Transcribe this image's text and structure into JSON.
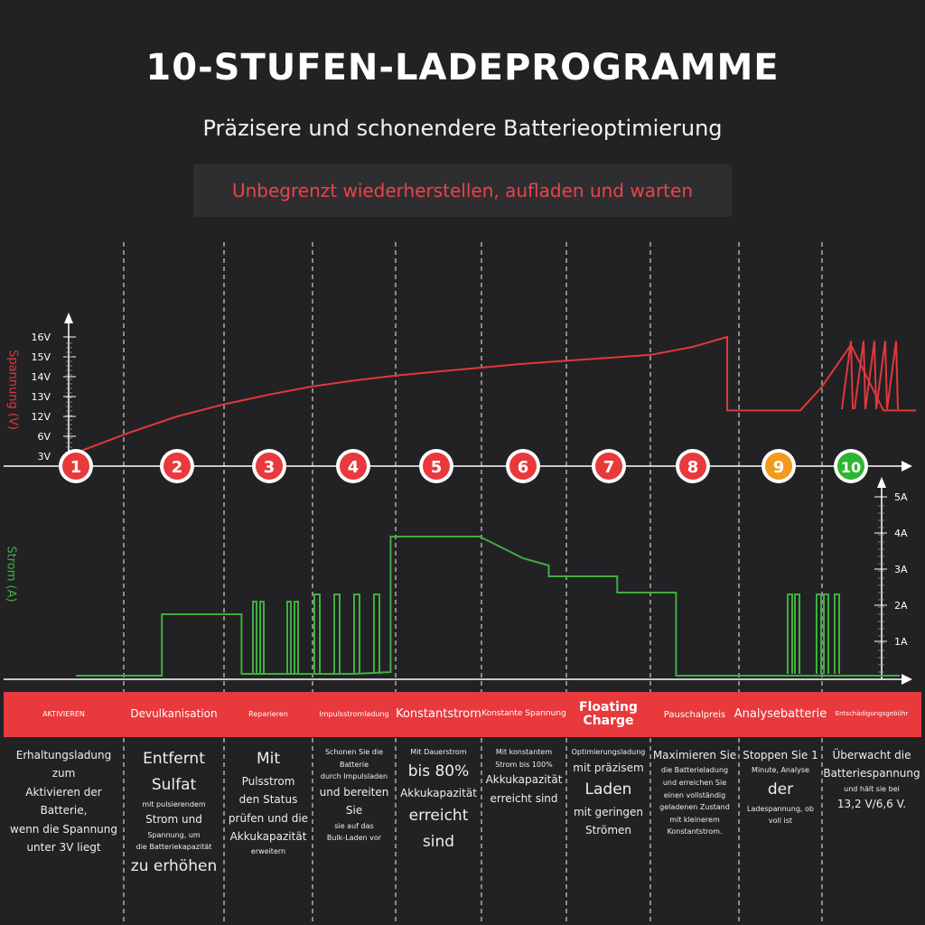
{
  "header": {
    "title": "10-STUFEN-LADEPROGRAMME",
    "subtitle": "Präzisere und schonendere Batterieoptimierung",
    "tagline": "Unbegrenzt wiederherstellen, aufladen und warten"
  },
  "colors": {
    "background": "#222224",
    "voltage_line": "#e0393c",
    "current_line": "#3fae3f",
    "band": "#e8393c",
    "stage_red": "#e8393c",
    "stage_9": "#f29a1d",
    "stage_10": "#2fb52f"
  },
  "chart_data": [
    {
      "type": "line",
      "ylabel": "Spannung (V)",
      "yticks": [
        "3V",
        "6V",
        "12V",
        "13V",
        "14V",
        "15V",
        "16V"
      ],
      "x_stages": [
        "1",
        "2",
        "3",
        "4",
        "5",
        "6",
        "7",
        "8",
        "9",
        "10"
      ],
      "series": [
        {
          "x": [
            1.0,
            1.5,
            2.0,
            2.5,
            3.0,
            3.5,
            4.0,
            4.5,
            5.0,
            5.5,
            6.0,
            6.5,
            7.0,
            7.5,
            8.0,
            8.4,
            8.4,
            9.0,
            9.3,
            9.6,
            10.0,
            10.4,
            10.8
          ],
          "y": [
            3.5,
            6.8,
            12.0,
            12.6,
            13.1,
            13.5,
            13.8,
            14.05,
            14.25,
            14.45,
            14.65,
            14.8,
            14.95,
            15.1,
            15.5,
            16.0,
            12.3,
            12.3,
            12.3,
            13.5,
            15.6,
            12.3,
            12.3
          ]
        }
      ],
      "note": "stage 10 shows repeated sawtooth pulses"
    },
    {
      "type": "line",
      "ylabel": "Strom (A)",
      "yticks": [
        "1A",
        "2A",
        "3A",
        "4A",
        "5A"
      ],
      "ylim": [
        0,
        5
      ],
      "x_stages": [
        "1",
        "2",
        "3",
        "4",
        "5",
        "6",
        "7",
        "8",
        "9",
        "10"
      ],
      "series": [
        {
          "x": [
            1.0,
            1.85,
            1.85,
            2.7,
            2.7,
            3.0,
            3.5,
            4.0,
            4.45,
            4.45,
            5.5,
            6.0,
            6.3,
            6.3,
            7.1,
            7.1,
            7.8,
            7.8,
            8.5,
            9.6,
            10.0,
            10.6
          ],
          "y": [
            0.05,
            0.05,
            1.75,
            1.75,
            0.1,
            0.1,
            0.1,
            0.1,
            0.15,
            3.9,
            3.9,
            3.3,
            3.1,
            2.8,
            2.8,
            2.35,
            2.35,
            0.05,
            0.05,
            0.05,
            0.05,
            0.05
          ]
        }
      ],
      "note": "stages 3, 4 and 9 show rectangular current pulses up to about 2.3A"
    }
  ],
  "stages": [
    {
      "num": "1",
      "label": "AKTIVIEREN"
    },
    {
      "num": "2",
      "label": "Devulkanisation"
    },
    {
      "num": "3",
      "label": "Reparieren"
    },
    {
      "num": "4",
      "label": "Impulsstromladung"
    },
    {
      "num": "5",
      "label": "Konstantstrom"
    },
    {
      "num": "6",
      "label": "Konstante Spannung"
    },
    {
      "num": "7",
      "label": "Floating Charge"
    },
    {
      "num": "8",
      "label": "Pauschalpreis"
    },
    {
      "num": "9",
      "label": "Analysebatterie"
    },
    {
      "num": "10",
      "label": "Entschädigungsgebühr"
    }
  ],
  "descriptions": [
    [
      "Erhaltungsladung zum",
      "Aktivieren der Batterie,",
      "wenn die Spannung",
      "unter 3V liegt"
    ],
    [
      "Entfernt Sulfat",
      "mit pulsierendem",
      "Strom und",
      "Spannung, um",
      "die Batteriekapazität",
      "zu erhöhen"
    ],
    [
      "Mit",
      "Pulsstrom",
      "den Status",
      "prüfen und die",
      "Akkukapazität",
      "erweitern"
    ],
    [
      "Schonen Sie die Batterie",
      "durch Impulsladen",
      "und bereiten Sie",
      "sie auf das",
      "Bulk-Laden vor"
    ],
    [
      "Mit Dauerstrom",
      "bis 80%",
      "Akkukapazität",
      "erreicht sind"
    ],
    [
      "Mit konstantem",
      "Strom bis 100%",
      "Akkukapazität",
      "erreicht sind"
    ],
    [
      "Optimierungsladung",
      "mit präzisem",
      "Laden",
      "mit geringen",
      "Strömen"
    ],
    [
      "Maximieren Sie",
      "die Batterieladung",
      "und erreichen Sie",
      "einen vollständig",
      "geladenen Zustand",
      "mit kleinerem",
      "Konstantstrom."
    ],
    [
      "Stoppen Sie 1",
      "Minute, Analyse",
      "der",
      "Ladespannung, ob",
      "voll ist"
    ],
    [
      "Überwacht die",
      "Batteriespannung",
      "und hält sie bei",
      "13,2 V/6,6 V."
    ]
  ]
}
